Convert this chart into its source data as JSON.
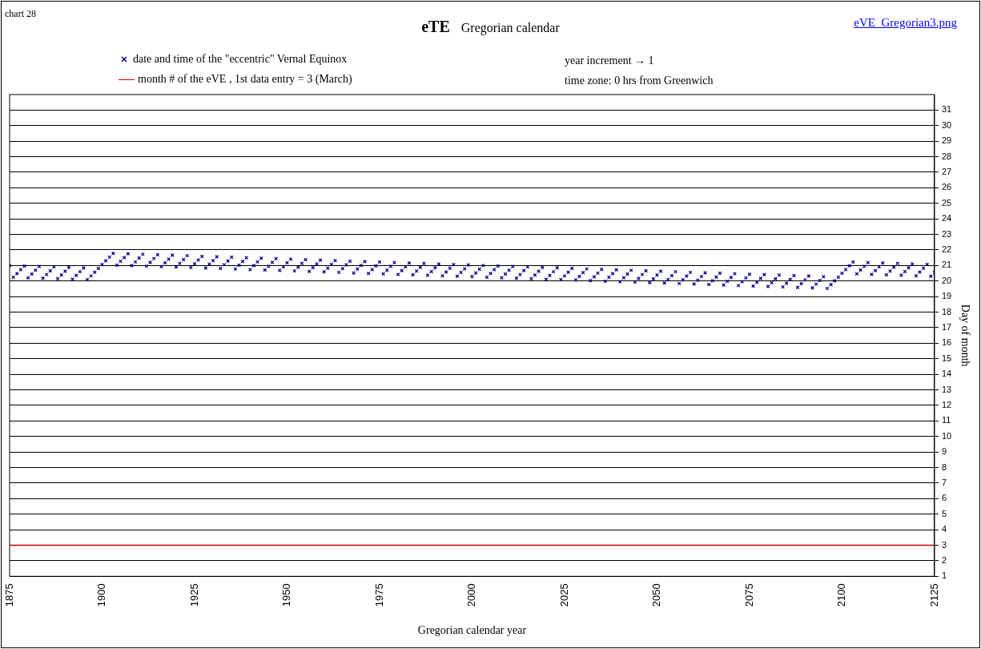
{
  "chart_data": {
    "type": "scatter",
    "title": "eTE",
    "subtitle": "Gregorian calendar",
    "xlabel": "Gregorian calendar year",
    "ylabel": "Day of month",
    "annotations": [
      "chart 28",
      "year increment → 1",
      "time zone:  0 hrs from Greenwich",
      "eVE_Gregorian3.png"
    ],
    "xlim": [
      1875,
      2125
    ],
    "xticks": [
      1875,
      1900,
      1925,
      1950,
      1975,
      2000,
      2025,
      2050,
      2075,
      2100,
      2125
    ],
    "ylim": [
      1,
      32
    ],
    "yticks": [
      1,
      2,
      3,
      4,
      5,
      6,
      7,
      8,
      9,
      10,
      11,
      12,
      13,
      14,
      15,
      16,
      17,
      18,
      19,
      20,
      21,
      22,
      23,
      24,
      25,
      26,
      27,
      28,
      29,
      30,
      31
    ],
    "grid": "y",
    "legend": "top",
    "series": [
      {
        "name": "date and time of the \"eccentric\"  Vernal Equinox",
        "type": "scatter",
        "marker": "cross",
        "color": "#000080",
        "x": [
          1875,
          1876,
          1877,
          1878,
          1879,
          1880,
          1881,
          1882,
          1883,
          1884,
          1885,
          1886,
          1887,
          1888,
          1889,
          1890,
          1891,
          1892,
          1893,
          1894,
          1895,
          1896,
          1897,
          1898,
          1899,
          1900,
          1901,
          1902,
          1903,
          1904,
          1905,
          1906,
          1907,
          1908,
          1909,
          1910,
          1911,
          1912,
          1913,
          1914,
          1915,
          1916,
          1917,
          1918,
          1919,
          1920,
          1921,
          1922,
          1923,
          1924,
          1925,
          1926,
          1927,
          1928,
          1929,
          1930,
          1931,
          1932,
          1933,
          1934,
          1935,
          1936,
          1937,
          1938,
          1939,
          1940,
          1941,
          1942,
          1943,
          1944,
          1945,
          1946,
          1947,
          1948,
          1949,
          1950,
          1951,
          1952,
          1953,
          1954,
          1955,
          1956,
          1957,
          1958,
          1959,
          1960,
          1961,
          1962,
          1963,
          1964,
          1965,
          1966,
          1967,
          1968,
          1969,
          1970,
          1971,
          1972,
          1973,
          1974,
          1975,
          1976,
          1977,
          1978,
          1979,
          1980,
          1981,
          1982,
          1983,
          1984,
          1985,
          1986,
          1987,
          1988,
          1989,
          1990,
          1991,
          1992,
          1993,
          1994,
          1995,
          1996,
          1997,
          1998,
          1999,
          2000,
          2001,
          2002,
          2003,
          2004,
          2005,
          2006,
          2007,
          2008,
          2009,
          2010,
          2011,
          2012,
          2013,
          2014,
          2015,
          2016,
          2017,
          2018,
          2019,
          2020,
          2021,
          2022,
          2023,
          2024,
          2025,
          2026,
          2027,
          2028,
          2029,
          2030,
          2031,
          2032,
          2033,
          2034,
          2035,
          2036,
          2037,
          2038,
          2039,
          2040,
          2041,
          2042,
          2043,
          2044,
          2045,
          2046,
          2047,
          2048,
          2049,
          2050,
          2051,
          2052,
          2053,
          2054,
          2055,
          2056,
          2057,
          2058,
          2059,
          2060,
          2061,
          2062,
          2063,
          2064,
          2065,
          2066,
          2067,
          2068,
          2069,
          2070,
          2071,
          2072,
          2073,
          2074,
          2075,
          2076,
          2077,
          2078,
          2079,
          2080,
          2081,
          2082,
          2083,
          2084,
          2085,
          2086,
          2087,
          2088,
          2089,
          2090,
          2091,
          2092,
          2093,
          2094,
          2095,
          2096,
          2097,
          2098,
          2099,
          2100,
          2101,
          2102,
          2103,
          2104,
          2105,
          2106,
          2107,
          2108,
          2109,
          2110,
          2111,
          2112,
          2113,
          2114,
          2115,
          2116,
          2117,
          2118,
          2119,
          2120,
          2121,
          2122,
          2123,
          2124,
          2125
        ],
        "values": [
          21.0,
          20.24,
          20.48,
          20.73,
          20.97,
          20.21,
          20.45,
          20.7,
          20.94,
          20.18,
          20.42,
          20.66,
          20.91,
          20.15,
          20.39,
          20.63,
          20.88,
          20.12,
          20.36,
          20.6,
          20.84,
          20.09,
          20.33,
          20.57,
          20.81,
          21.06,
          21.3,
          21.54,
          21.78,
          21.02,
          21.27,
          21.51,
          21.75,
          20.99,
          21.23,
          21.48,
          21.72,
          20.96,
          21.2,
          21.45,
          21.69,
          20.93,
          21.17,
          21.41,
          21.66,
          20.9,
          21.14,
          21.38,
          21.63,
          20.87,
          21.11,
          21.35,
          21.59,
          20.84,
          21.08,
          21.32,
          21.56,
          20.81,
          21.05,
          21.29,
          21.53,
          20.77,
          21.02,
          21.26,
          21.5,
          20.74,
          20.99,
          21.23,
          21.47,
          20.71,
          20.95,
          21.2,
          21.44,
          20.68,
          20.92,
          21.17,
          21.41,
          20.65,
          20.89,
          21.13,
          21.38,
          20.62,
          20.86,
          21.1,
          21.34,
          20.59,
          20.83,
          21.07,
          21.31,
          20.56,
          20.8,
          21.04,
          21.28,
          20.52,
          20.77,
          21.01,
          21.25,
          20.49,
          20.74,
          20.98,
          21.22,
          20.46,
          20.7,
          20.95,
          21.19,
          20.43,
          20.67,
          20.92,
          21.16,
          20.4,
          20.64,
          20.88,
          21.13,
          20.37,
          20.61,
          20.85,
          21.1,
          20.34,
          20.58,
          20.82,
          21.06,
          20.31,
          20.55,
          20.79,
          21.03,
          20.28,
          20.52,
          20.76,
          21.0,
          20.24,
          20.49,
          20.73,
          20.97,
          20.21,
          20.45,
          20.7,
          20.94,
          20.18,
          20.42,
          20.67,
          20.91,
          20.15,
          20.39,
          20.63,
          20.88,
          20.12,
          20.36,
          20.6,
          20.85,
          20.09,
          20.33,
          20.57,
          20.81,
          20.06,
          20.3,
          20.54,
          20.78,
          20.03,
          20.27,
          20.51,
          20.75,
          19.99,
          20.24,
          20.48,
          20.72,
          19.96,
          20.21,
          20.45,
          20.69,
          19.93,
          20.17,
          20.42,
          20.66,
          19.9,
          20.14,
          20.39,
          20.63,
          19.87,
          20.11,
          20.35,
          20.6,
          19.84,
          20.08,
          20.32,
          20.56,
          19.81,
          20.05,
          20.29,
          20.53,
          19.78,
          20.02,
          20.26,
          20.5,
          19.74,
          19.99,
          20.23,
          20.47,
          19.71,
          19.96,
          20.2,
          20.44,
          19.68,
          19.92,
          20.17,
          20.41,
          19.65,
          19.89,
          20.14,
          20.38,
          19.62,
          19.86,
          20.1,
          20.35,
          19.59,
          19.83,
          20.07,
          20.32,
          19.56,
          19.8,
          20.04,
          20.28,
          19.53,
          19.77,
          20.01,
          20.25,
          20.5,
          20.74,
          20.98,
          21.22,
          20.46,
          20.71,
          20.95,
          21.19,
          20.43,
          20.67,
          20.92,
          21.16,
          20.4,
          20.64,
          20.89,
          21.13,
          20.37,
          20.61,
          20.85,
          21.1,
          20.34,
          20.58,
          20.82,
          21.07,
          20.31,
          20.55
        ]
      },
      {
        "name": "month # of the eVE , 1st data entry = 3 (March)",
        "type": "line",
        "marker": "none",
        "color": "#cc0000",
        "x": [
          1875,
          2125
        ],
        "values": [
          3,
          3
        ]
      }
    ]
  }
}
